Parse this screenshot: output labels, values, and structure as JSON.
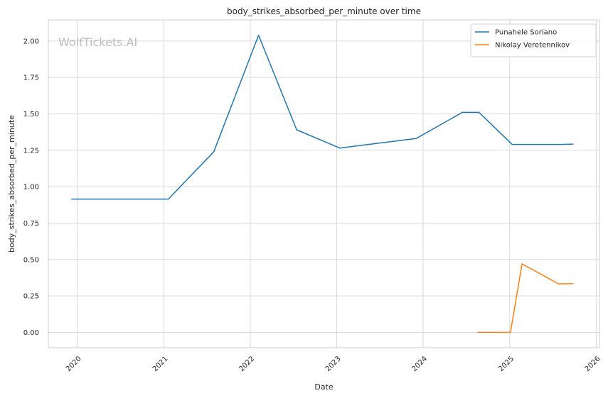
{
  "chart_data": {
    "type": "line",
    "title": "body_strikes_absorbed_per_minute over time",
    "xlabel": "Date",
    "ylabel": "body_strikes_absorbed_per_minute",
    "watermark": "WolfTickets.AI",
    "x_axis": "date",
    "xlim": [
      "2019-09-01",
      "2026-01-15"
    ],
    "ylim": [
      -0.105,
      2.145
    ],
    "x_ticks": [
      "2020-01-01",
      "2021-01-01",
      "2022-01-01",
      "2023-01-01",
      "2024-01-01",
      "2025-01-01",
      "2026-01-01"
    ],
    "x_tick_labels": [
      "2020",
      "2021",
      "2022",
      "2023",
      "2024",
      "2025",
      "2026"
    ],
    "y_ticks": [
      0.0,
      0.25,
      0.5,
      0.75,
      1.0,
      1.25,
      1.5,
      1.75,
      2.0
    ],
    "y_tick_labels": [
      "0.00",
      "0.25",
      "0.50",
      "0.75",
      "1.00",
      "1.25",
      "1.50",
      "1.75",
      "2.00"
    ],
    "grid": true,
    "legend_position": "top-right",
    "series": [
      {
        "name": "Punahele Soriano",
        "color": "#1f77b4",
        "points": [
          {
            "x": "2019-12-07",
            "y": 0.915
          },
          {
            "x": "2021-01-20",
            "y": 0.915
          },
          {
            "x": "2021-07-31",
            "y": 1.24
          },
          {
            "x": "2022-02-05",
            "y": 2.04
          },
          {
            "x": "2022-07-16",
            "y": 1.39
          },
          {
            "x": "2023-01-14",
            "y": 1.265
          },
          {
            "x": "2023-12-02",
            "y": 1.33
          },
          {
            "x": "2024-06-15",
            "y": 1.51
          },
          {
            "x": "2024-08-24",
            "y": 1.51
          },
          {
            "x": "2025-01-11",
            "y": 1.29
          },
          {
            "x": "2025-08-02",
            "y": 1.29
          },
          {
            "x": "2025-09-27",
            "y": 1.292
          }
        ]
      },
      {
        "name": "Nikolay Veretennikov",
        "color": "#ff7f0e",
        "points": [
          {
            "x": "2024-08-17",
            "y": 0.0
          },
          {
            "x": "2025-01-04",
            "y": 0.0
          },
          {
            "x": "2025-02-22",
            "y": 0.47
          },
          {
            "x": "2025-07-26",
            "y": 0.333
          },
          {
            "x": "2025-09-27",
            "y": 0.335
          }
        ]
      }
    ]
  }
}
